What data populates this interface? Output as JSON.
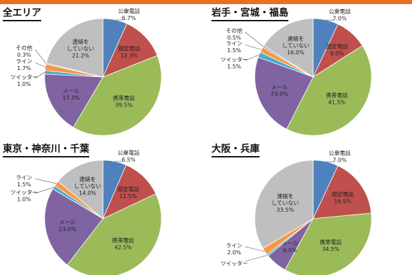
{
  "colors": {
    "public": "#4f81bd",
    "landline": "#c0504d",
    "mobile": "#9bbb59",
    "mail": "#8064a2",
    "twitter": "#4bacc6",
    "line": "#f79646",
    "other": "#a6a6a6",
    "none": "#bfbfbf"
  },
  "chart_data": [
    {
      "type": "pie",
      "title": "全エリア",
      "slices": [
        {
          "label": "公衆電話",
          "value": 6.7,
          "display": "6.7%",
          "color_key": "public"
        },
        {
          "label": "固定電話",
          "value": 12.3,
          "display": "12.3%",
          "color_key": "landline"
        },
        {
          "label": "携帯電話",
          "value": 39.5,
          "display": "39.5%",
          "color_key": "mobile"
        },
        {
          "label": "メール",
          "value": 17.3,
          "display": "17.3%",
          "color_key": "mail"
        },
        {
          "label": "ツイッター",
          "value": 1.0,
          "display": "1.0%",
          "color_key": "twitter"
        },
        {
          "label": "ライン",
          "value": 1.7,
          "display": "1.7%",
          "color_key": "line"
        },
        {
          "label": "その他",
          "value": 0.3,
          "display": "0.3%",
          "color_key": "other"
        },
        {
          "label": "連絡をしていない",
          "value": 21.2,
          "display": "21.2%",
          "color_key": "none"
        }
      ]
    },
    {
      "type": "pie",
      "title": "岩手・宮城・福島",
      "slices": [
        {
          "label": "公衆電話",
          "value": 7.0,
          "display": "7.0%",
          "color_key": "public"
        },
        {
          "label": "固定電話",
          "value": 9.0,
          "display": "9.0%",
          "color_key": "landline"
        },
        {
          "label": "携帯電話",
          "value": 41.5,
          "display": "41.5%",
          "color_key": "mobile"
        },
        {
          "label": "メール",
          "value": 23.0,
          "display": "23.0%",
          "color_key": "mail"
        },
        {
          "label": "ツイッター",
          "value": 1.5,
          "display": "1.5%",
          "color_key": "twitter"
        },
        {
          "label": "ライン",
          "value": 1.5,
          "display": "1.5%",
          "color_key": "line"
        },
        {
          "label": "その他",
          "value": 0.5,
          "display": "0.5%",
          "color_key": "other"
        },
        {
          "label": "連絡をしていない",
          "value": 16.0,
          "display": "16.0%",
          "color_key": "none"
        }
      ]
    },
    {
      "type": "pie",
      "title": "東京・神奈川・千葉",
      "slices": [
        {
          "label": "公衆電話",
          "value": 6.5,
          "display": "6.5%",
          "color_key": "public"
        },
        {
          "label": "固定電話",
          "value": 11.5,
          "display": "11.5%",
          "color_key": "landline"
        },
        {
          "label": "携帯電話",
          "value": 42.5,
          "display": "42.5%",
          "color_key": "mobile"
        },
        {
          "label": "メール",
          "value": 23.0,
          "display": "23.0%",
          "color_key": "mail"
        },
        {
          "label": "ツイッター",
          "value": 1.0,
          "display": "1.0%",
          "color_key": "twitter"
        },
        {
          "label": "ライン",
          "value": 1.5,
          "display": "1.5%",
          "color_key": "line"
        },
        {
          "label": "連絡をしていない",
          "value": 14.0,
          "display": "14.0%",
          "color_key": "none"
        }
      ]
    },
    {
      "type": "pie",
      "title": "大阪・兵庫",
      "slices": [
        {
          "label": "公衆電話",
          "value": 7.0,
          "display": "7.0%",
          "color_key": "public"
        },
        {
          "label": "固定電話",
          "value": 16.5,
          "display": "16.5%",
          "color_key": "landline"
        },
        {
          "label": "携帯電話",
          "value": 34.5,
          "display": "34.5%",
          "color_key": "mobile"
        },
        {
          "label": "メール",
          "value": 6.0,
          "display": "6.0%",
          "color_key": "mail"
        },
        {
          "label": "ツイッター",
          "value": 0.5,
          "display": "",
          "color_key": "twitter"
        },
        {
          "label": "ライン",
          "value": 2.0,
          "display": "2.0%",
          "color_key": "line"
        },
        {
          "label": "連絡をしていない",
          "value": 33.5,
          "display": "33.5%",
          "color_key": "none"
        }
      ]
    }
  ]
}
